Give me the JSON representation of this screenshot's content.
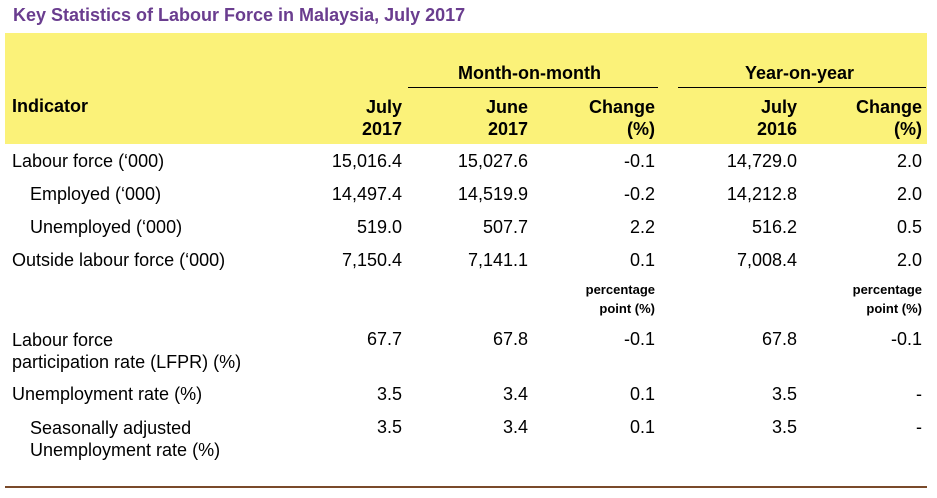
{
  "title": "Key Statistics of Labour Force in Malaysia, July 2017",
  "header": {
    "indicator": "Indicator",
    "group_mom": "Month-on-month",
    "group_yoy": "Year-on-year",
    "col_july2017": [
      "July",
      "2017"
    ],
    "col_june2017": [
      "June",
      "2017"
    ],
    "col_change_mom": [
      "Change",
      "(%)"
    ],
    "col_july2016": [
      "July",
      "2016"
    ],
    "col_change_yoy": [
      "Change",
      "(%)"
    ]
  },
  "rows": [
    {
      "label": [
        "Labour force (‘000)"
      ],
      "values": [
        "15,016.4",
        "15,027.6",
        "-0.1",
        "14,729.0",
        "2.0"
      ]
    },
    {
      "label": [
        "Employed (‘000)"
      ],
      "values": [
        "14,497.4",
        "14,519.9",
        "-0.2",
        "14,212.8",
        "2.0"
      ]
    },
    {
      "label": [
        "Unemployed (‘000)"
      ],
      "values": [
        "519.0",
        "507.7",
        "2.2",
        "516.2",
        "0.5"
      ]
    },
    {
      "label": [
        "Outside labour force (‘000)"
      ],
      "values": [
        "7,150.4",
        "7,141.1",
        "0.1",
        "7,008.4",
        "2.0"
      ]
    },
    {
      "label": [
        "Labour force",
        "participation rate (LFPR) (%)"
      ],
      "values": [
        "67.7",
        "67.8",
        "-0.1",
        "67.8",
        "-0.1"
      ]
    },
    {
      "label": [
        "Unemployment rate (%)"
      ],
      "values": [
        "3.5",
        "3.4",
        "0.1",
        "3.5",
        "-"
      ]
    },
    {
      "label": [
        "Seasonally adjusted",
        "Unemployment rate (%)"
      ],
      "values": [
        "3.5",
        "3.4",
        "0.1",
        "3.5",
        "-"
      ]
    }
  ],
  "pp_note": [
    "percentage",
    "point (%)"
  ]
}
